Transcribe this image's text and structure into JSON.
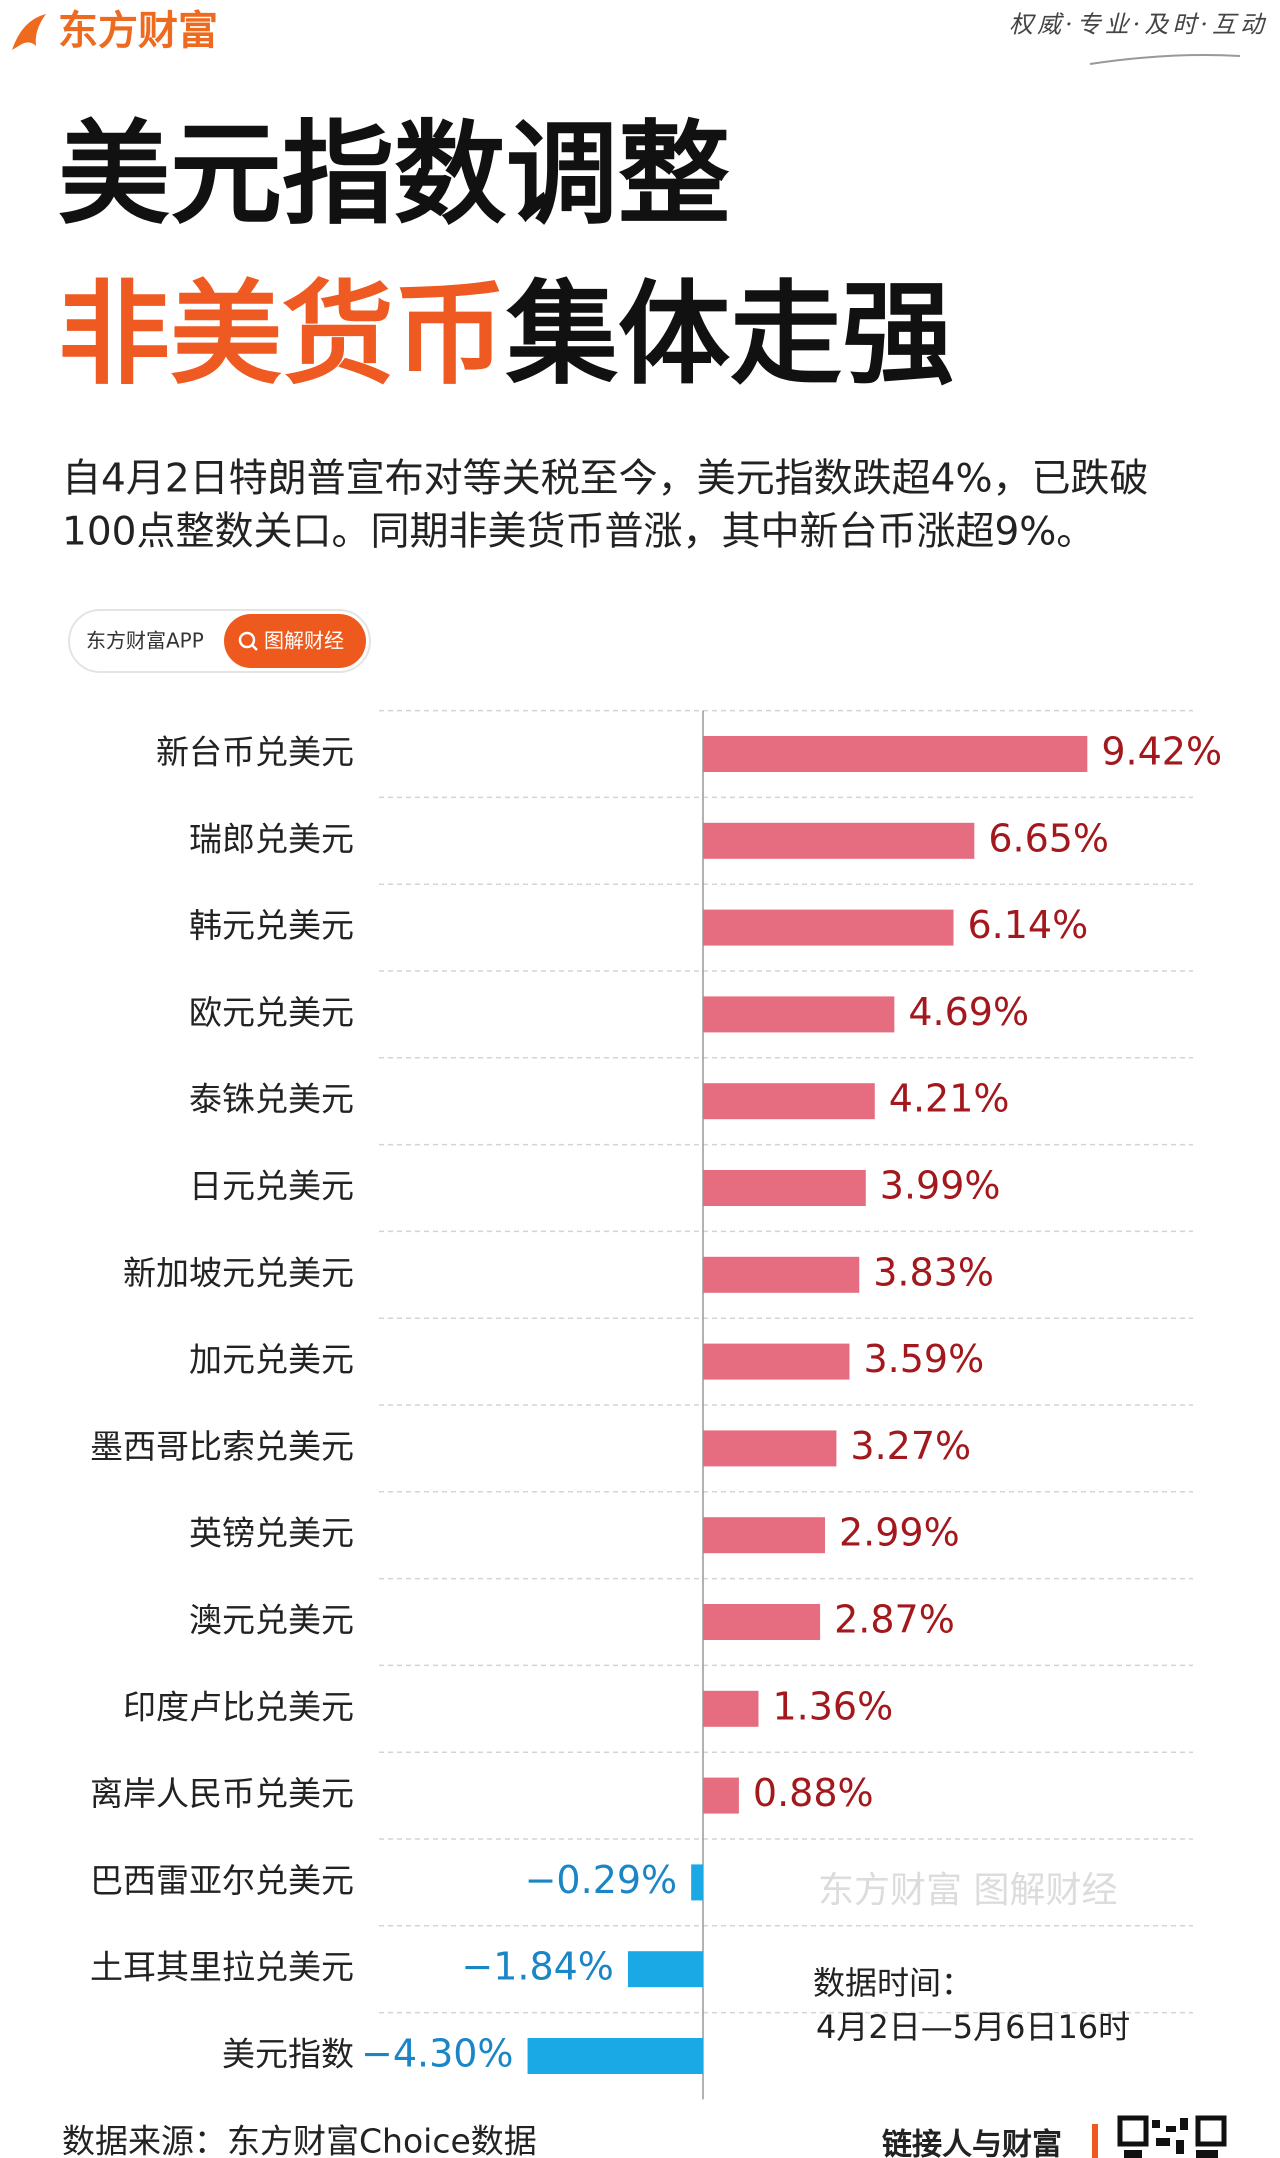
{
  "header": {
    "logo": "东方财富",
    "slogan": "权威·专业·及时·互动"
  },
  "badge": {
    "app": "东方财富APP",
    "tag": "图解财经"
  },
  "chart_data": {
    "type": "bar",
    "orientation": "horizontal",
    "title": "美元指数调整",
    "subtitle": "非美货币集体走强",
    "description": [
      "自4月2日特朗普宣布对等关税至今，美元指数跌超4%，已跌破",
      "100点整数关口。同期非美货币普涨，其中新台币涨超9%。"
    ],
    "categories": [
      "新台币兑美元",
      "瑞郎兑美元",
      "韩元兑美元",
      "欧元兑美元",
      "泰铢兑美元",
      "日元兑美元",
      "新加坡元兑美元",
      "加元兑美元",
      "墨西哥比索兑美元",
      "英镑兑美元",
      "澳元兑美元",
      "印度卢比兑美元",
      "离岸人民币兑美元",
      "巴西雷亚尔兑美元",
      "土耳其里拉兑美元",
      "美元指数"
    ],
    "values": [
      9.42,
      6.65,
      6.14,
      4.69,
      4.21,
      3.99,
      3.83,
      3.59,
      3.27,
      2.99,
      2.87,
      1.36,
      0.88,
      -0.29,
      -1.84,
      -4.3
    ],
    "value_labels": [
      "9.42%",
      "6.65%",
      "6.14%",
      "4.69%",
      "4.21%",
      "3.99%",
      "3.83%",
      "3.59%",
      "3.27%",
      "2.99%",
      "2.87%",
      "1.36%",
      "0.88%",
      "−0.29%",
      "−1.84%",
      "−4.30%"
    ],
    "colors": {
      "positive": "#e56d7f",
      "negative": "#1aa9e5",
      "positive_label": "#a3181c",
      "negative_label": "#1b86c6"
    },
    "watermark": "东方财富 图解财经",
    "date_note": [
      "数据时间：",
      "4月2日—5月6日16时"
    ],
    "source": "数据来源：东方财富Choice数据"
  },
  "footer": {
    "slogan": "链接人与财富"
  }
}
